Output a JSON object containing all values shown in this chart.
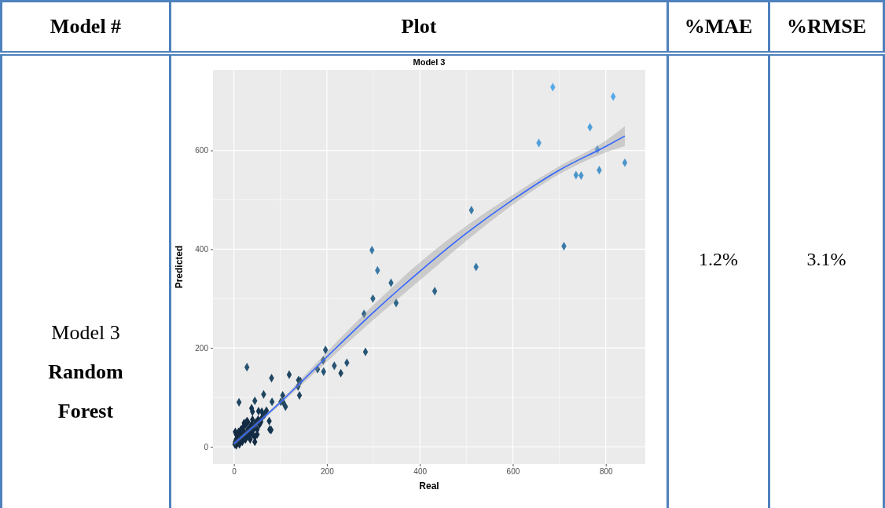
{
  "chart_data": {
    "type": "scatter",
    "title": "Model 3",
    "xlabel": "Real",
    "ylabel": "Predicted",
    "annotations": [
      "Model #",
      "Plot",
      "%MAE",
      "%RMSE",
      "Model 3",
      "Random Forest",
      "1.2%",
      "3.1%"
    ],
    "xlim": [
      -45,
      885
    ],
    "ylim": [
      -35,
      763
    ],
    "xticks": [
      0,
      200,
      400,
      600,
      800
    ],
    "yticks": [
      0,
      200,
      400,
      600
    ],
    "grid": true,
    "series": [
      {
        "marker": "diamond",
        "x": [
          686,
          816,
          766,
          656,
          782,
          841,
          786,
          736,
          747,
          710,
          511,
          521,
          297,
          309,
          338,
          432,
          299,
          349,
          280,
          197,
          283,
          28,
          192,
          180,
          216,
          243,
          193,
          230,
          81,
          119,
          139,
          143,
          138,
          141,
          105,
          111,
          101,
          106,
          11,
          82,
          64,
          45,
          38,
          40,
          53,
          70,
          76,
          77,
          80,
          66,
          60,
          2,
          3,
          5,
          5,
          8,
          8,
          10,
          12,
          12,
          15,
          15,
          18,
          18,
          20,
          20,
          22,
          25,
          25,
          28,
          30,
          30,
          32,
          35,
          35,
          38,
          40,
          40,
          42,
          45,
          45,
          48,
          50,
          52,
          55,
          58,
          60,
          3,
          5,
          28,
          22,
          35,
          45,
          50
        ],
        "values": [
          728,
          709,
          647,
          615,
          602,
          575,
          560,
          550,
          549,
          406,
          479,
          364,
          398,
          357,
          332,
          315,
          300,
          291,
          269,
          196,
          192,
          161,
          175,
          157,
          164,
          170,
          152,
          149,
          139,
          146,
          135,
          133,
          122,
          104,
          104,
          81,
          91,
          90,
          90,
          91,
          106,
          93,
          78,
          71,
          72,
          73,
          52,
          35,
          34,
          65,
          71,
          5,
          10,
          3,
          15,
          8,
          20,
          30,
          5,
          25,
          15,
          35,
          10,
          25,
          20,
          40,
          30,
          15,
          45,
          25,
          35,
          50,
          20,
          40,
          30,
          45,
          25,
          55,
          35,
          45,
          20,
          50,
          35,
          55,
          45,
          50,
          58,
          30,
          25,
          52,
          48,
          15,
          10,
          25
        ],
        "colors": [
          "#56a9ea",
          "#56a9ea",
          "#4f9fdc",
          "#4f9fdc",
          "#4f9fdc",
          "#4a95cc",
          "#4a95cc",
          "#4a95cc",
          "#4a95cc",
          "#3a7aa8",
          "#3a7aa8",
          "#3a7aa8",
          "#3a7aa8",
          "#3a7aa8",
          "#2f6588",
          "#2f6588",
          "#2f6588",
          "#2f6588",
          "#2f6588",
          "#275474",
          "#275474",
          "#275474",
          "#275474",
          "#275474",
          "#275474",
          "#275474",
          "#275474",
          "#1f4660",
          "#1f4660",
          "#1f4660",
          "#1f4660",
          "#1f4660",
          "#1f4660",
          "#1f4660",
          "#1f4660",
          "#1f4660",
          "#1f4660",
          "#1f4660",
          "#1f4660",
          "#1f4660",
          "#1f4660",
          "#1f4660",
          "#163550",
          "#163550",
          "#163550",
          "#163550",
          "#163550",
          "#163550",
          "#163550",
          "#163550",
          "#163550",
          "#132b43",
          "#132b43",
          "#132b43",
          "#132b43",
          "#132b43",
          "#132b43",
          "#132b43",
          "#132b43",
          "#132b43",
          "#132b43",
          "#132b43",
          "#132b43",
          "#132b43",
          "#132b43",
          "#132b43",
          "#132b43",
          "#132b43",
          "#132b43",
          "#132b43",
          "#132b43",
          "#132b43",
          "#132b43",
          "#132b43",
          "#132b43",
          "#132b43",
          "#132b43",
          "#132b43",
          "#132b43",
          "#132b43",
          "#132b43",
          "#132b43",
          "#132b43",
          "#132b43",
          "#132b43",
          "#132b43",
          "#132b43",
          "#132b43",
          "#132b43",
          "#132b43",
          "#132b43",
          "#132b43",
          "#132b43",
          "#132b43"
        ]
      },
      {
        "type": "line",
        "color": "#3366ff",
        "x": [
          0,
          100,
          200,
          300,
          400,
          500,
          600,
          700,
          800,
          841
        ],
        "values": [
          6,
          90,
          182,
          272,
          355,
          432,
          500,
          560,
          608,
          629
        ],
        "lower": [
          2,
          86,
          172,
          257,
          337,
          417,
          490,
          552,
          596,
          609
        ],
        "upper": [
          10,
          94,
          192,
          287,
          373,
          447,
          510,
          568,
          620,
          649
        ]
      }
    ]
  }
}
